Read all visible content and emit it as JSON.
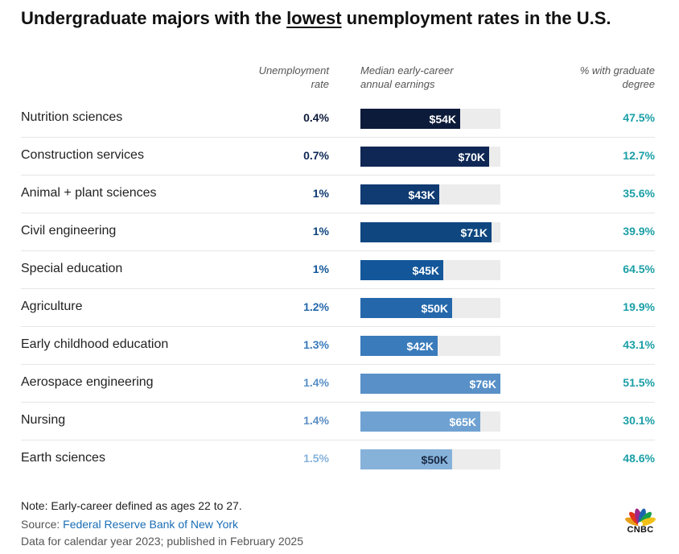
{
  "title": {
    "prefix": "Undergraduate majors with the ",
    "emphasis": "lowest",
    "suffix": " unemployment rates in the U.S."
  },
  "headers": {
    "unemployment_line1": "Unemployment",
    "unemployment_line2": "rate",
    "earnings_line1": "Median early-career",
    "earnings_line2": "annual earnings",
    "grad_line1": "% with graduate",
    "grad_line2": "degree"
  },
  "chart_data": {
    "type": "table",
    "title": "Undergraduate majors with the lowest unemployment rates in the U.S.",
    "columns": [
      "Unemployment rate",
      "Median early-career annual earnings",
      "% with graduate degree"
    ],
    "earnings_max": 76,
    "rows": [
      {
        "major": "Nutrition sciences",
        "rate": "0.4%",
        "earnings": 54,
        "earnings_label": "$54K",
        "grad": "47.5%",
        "color": "#0d1b3a",
        "rate_color": "#0d1b3a",
        "label_color": "#ffffff"
      },
      {
        "major": "Construction services",
        "rate": "0.7%",
        "earnings": 70,
        "earnings_label": "$70K",
        "grad": "12.7%",
        "color": "#0f2755",
        "rate_color": "#0f2755",
        "label_color": "#ffffff"
      },
      {
        "major": "Animal + plant sciences",
        "rate": "1%",
        "earnings": 43,
        "earnings_label": "$43K",
        "grad": "35.6%",
        "color": "#0f3a72",
        "rate_color": "#0f3a72",
        "label_color": "#ffffff"
      },
      {
        "major": "Civil engineering",
        "rate": "1%",
        "earnings": 71,
        "earnings_label": "$71K",
        "grad": "39.9%",
        "color": "#0f467f",
        "rate_color": "#0f467f",
        "label_color": "#ffffff"
      },
      {
        "major": "Special education",
        "rate": "1%",
        "earnings": 45,
        "earnings_label": "$45K",
        "grad": "64.5%",
        "color": "#13579a",
        "rate_color": "#13579a",
        "label_color": "#ffffff"
      },
      {
        "major": "Agriculture",
        "rate": "1.2%",
        "earnings": 50,
        "earnings_label": "$50K",
        "grad": "19.9%",
        "color": "#2468ab",
        "rate_color": "#2468ab",
        "label_color": "#ffffff"
      },
      {
        "major": "Early childhood education",
        "rate": "1.3%",
        "earnings": 42,
        "earnings_label": "$42K",
        "grad": "43.1%",
        "color": "#3a7bbb",
        "rate_color": "#3a7bbb",
        "label_color": "#ffffff"
      },
      {
        "major": "Aerospace engineering",
        "rate": "1.4%",
        "earnings": 76,
        "earnings_label": "$76K",
        "grad": "51.5%",
        "color": "#5890c7",
        "rate_color": "#5890c7",
        "label_color": "#ffffff"
      },
      {
        "major": "Nursing",
        "rate": "1.4%",
        "earnings": 65,
        "earnings_label": "$65K",
        "grad": "30.1%",
        "color": "#6fa2d2",
        "rate_color": "#5b8dc3",
        "label_color": "#ffffff"
      },
      {
        "major": "Earth sciences",
        "rate": "1.5%",
        "earnings": 50,
        "earnings_label": "$50K",
        "grad": "48.6%",
        "color": "#86b2da",
        "rate_color": "#86b2da",
        "label_color": "#1a2a44"
      }
    ]
  },
  "footer": {
    "note": "Note: Early-career defined as ages 22 to 27.",
    "source_label": "Source: ",
    "source_link": "Federal Reserve Bank of New York",
    "published": "Data for calendar year 2023; published in February 2025",
    "logo": "CNBC"
  }
}
